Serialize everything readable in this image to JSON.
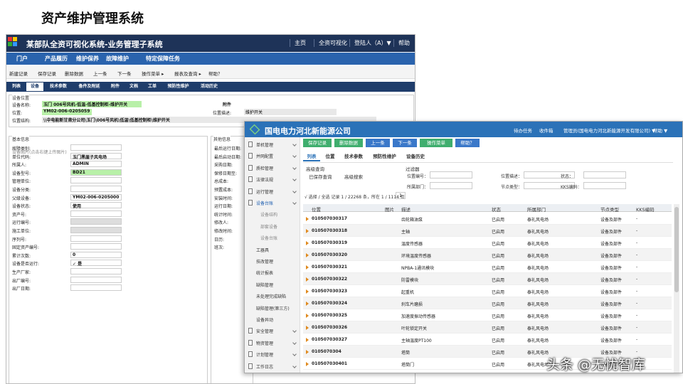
{
  "header": {
    "title": "资产维护管理系统"
  },
  "watermark": "头条 @无忧智库",
  "app1": {
    "title": "某部队全资可视化系统-业务管理子系统",
    "nav": [
      "主页",
      "全资可视化",
      "登陆人（A）▼",
      "帮助"
    ],
    "menu": [
      "门户",
      "产品履历",
      "维护保养",
      "故障维护",
      "特定保障任务"
    ],
    "toolbar": [
      "新建记录",
      "保存记录",
      "删除数据",
      "上一条",
      "下一条",
      "操作菜单 ▸",
      "报表及查询 ▸",
      "帮助？"
    ],
    "tabs": [
      "列表",
      "设备",
      "技术参数",
      "备件及附延",
      "附件",
      "文档",
      "工单",
      "预防性维护",
      "活动历史"
    ],
    "location": {
      "section": "设备位置",
      "attachment": "附件",
      "fields": [
        {
          "label": "设备名称:",
          "value": "玉门 006号风机-低温-低基控制柜-维护开关"
        },
        {
          "label": "位置:",
          "value": "YM02-006-0205059"
        },
        {
          "label": "位置结构:",
          "value": "\\\\中电能新甘肃分公司\\玉门\\006号风机\\低温\\低基控制柜\\维护开关"
        }
      ],
      "desc_label": "位置描述:",
      "desc_value": "维护开关"
    },
    "basic": {
      "section": "基本信息",
      "image_hint": "设备图片(点击右键上传图片)",
      "fields": [
        {
          "label": "故障类别:"
        },
        {
          "label": "单位代码:",
          "value": "玉门黑崖子风电场"
        },
        {
          "label": "所属人:",
          "value": "ADMIN"
        },
        {
          "label": "设备型号:",
          "value": "BD21"
        },
        {
          "label": "管理单位:"
        },
        {
          "label": "设备分类:"
        },
        {
          "label": "父级设备:",
          "value": "YM02-006-0205000"
        },
        {
          "label": "设备状态:",
          "value": "使用"
        },
        {
          "label": "资产号:"
        },
        {
          "label": "运行编号:"
        },
        {
          "label": "施工单位:"
        },
        {
          "label": "序列号:"
        },
        {
          "label": "固定资产编号:"
        },
        {
          "label": "累计次数:",
          "value": "0"
        },
        {
          "label": "设备是否运行:",
          "value": "✓ 是"
        },
        {
          "label": "生产厂家:"
        },
        {
          "label": "出厂编号:"
        },
        {
          "label": "出厂日期:"
        }
      ]
    },
    "other": {
      "section": "其他信息",
      "fields": [
        "最后运行日期:",
        "最后启动日期:",
        "采购日期:",
        "保修日期至:",
        "总成本:",
        "预置成本:",
        "安装时间:",
        "运行日期:",
        "统计时间:",
        "修改人:",
        "修改时间:",
        "日历:",
        "班次:"
      ]
    }
  },
  "app2": {
    "company": "国电电力河北新能源公司",
    "nav": [
      "待办任务",
      "收件箱",
      "管理员(国电电力河北新能源开发有限公司) ▼",
      "帮助 ▼"
    ],
    "sidebar": [
      "单机管理",
      "并网配置",
      "质检管理",
      "法律法规",
      "运行管理",
      "设备台账",
      "设备结构",
      "部套设备",
      "设备台账",
      "工器具",
      "技改管理",
      "统计报表",
      "缺陷管理",
      "未处理完成缺陷",
      "缺陷管理(第三方)",
      "设备异动",
      "安全管理",
      "物资管理",
      "计划管理",
      "工作日志"
    ],
    "buttons": [
      "保存记录",
      "删除数据",
      "上一条",
      "下一条",
      "操作菜单",
      "帮助？"
    ],
    "tabs": [
      "列表",
      "位置",
      "技术参数",
      "预防性维护",
      "设备历史"
    ],
    "query": {
      "title": "高级查询",
      "saved": "已保存查询",
      "search": "高级搜索",
      "filter": "过滤器",
      "fields": [
        "位置编号：",
        "位置描述：",
        "状态：",
        "所属部门：",
        "节点类型：",
        "KKS编码："
      ]
    },
    "pager": "√ 选择 / 全选 记录 1 / 22268 条，所在 1 / 1114 页",
    "page_no": "1",
    "columns": [
      "位置",
      "图片",
      "描述",
      "状态",
      "所属部门",
      "节点类型",
      "KKS编码"
    ],
    "rows": [
      [
        "010507030317",
        "齿轮箱油泵",
        "已启用",
        "泰礼风电场",
        "设备及部件",
        "-"
      ],
      [
        "010507030318",
        "主轴",
        "已启用",
        "泰礼风电场",
        "设备及部件",
        "-"
      ],
      [
        "010507030319",
        "温度传感器",
        "已启用",
        "泰礼风电场",
        "设备及部件",
        "-"
      ],
      [
        "010507030320",
        "环境温度传感器",
        "已启用",
        "泰礼风电场",
        "设备及部件",
        "-"
      ],
      [
        "010507030321",
        "NPBA-1通讯模块",
        "已启用",
        "泰礼风电场",
        "设备及部件",
        "-"
      ],
      [
        "010507030322",
        "防雷模块",
        "已启用",
        "泰礼风电场",
        "设备及部件",
        "-"
      ],
      [
        "010507030323",
        "起重机",
        "已启用",
        "泰礼风电场",
        "设备及部件",
        "-"
      ],
      [
        "010507030324",
        "刹车片磨损",
        "已启用",
        "泰礼风电场",
        "设备及部件",
        "-"
      ],
      [
        "010507030325",
        "加速度振动传感器",
        "已启用",
        "泰礼风电场",
        "设备及部件",
        "-"
      ],
      [
        "010507030326",
        "叶轮锁定开关",
        "已启用",
        "泰礼风电场",
        "设备及部件",
        "-"
      ],
      [
        "010507030327",
        "主轴温度PT100",
        "已启用",
        "泰礼风电场",
        "设备及部件",
        "-"
      ],
      [
        "0105070304",
        "塔筒",
        "已启用",
        "泰礼风电场",
        "设备及部件",
        "-"
      ],
      [
        "010507030401",
        "塔筒门",
        "已启用",
        "泰礼风电场",
        "设备及部件",
        "-"
      ]
    ]
  }
}
